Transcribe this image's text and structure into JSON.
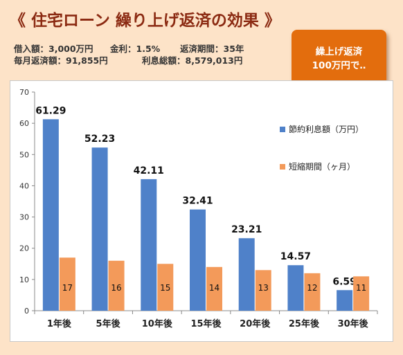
{
  "title": "《 住宅ローン 繰り上げ返済の効果 》",
  "info": {
    "line1": [
      "借入額：3,000万円",
      "金利：1.5%",
      "返済期間：35年"
    ],
    "line2": [
      "毎月返済額：91,855円",
      "利息総額：8,579,013円"
    ]
  },
  "callout": {
    "line1": "繰上げ返済",
    "line2": "100万円で‥"
  },
  "colors": {
    "blue": "#4f81c9",
    "orange": "#f39a5a",
    "callout": "#e36d0d",
    "title": "#8b2a12"
  },
  "chart_data": {
    "type": "bar",
    "categories": [
      "1年後",
      "5年後",
      "10年後",
      "15年後",
      "20年後",
      "25年後",
      "30年後"
    ],
    "series": [
      {
        "name": "節約利息額（万円）",
        "values": [
          61.29,
          52.23,
          42.11,
          32.41,
          23.21,
          14.57,
          6.59
        ]
      },
      {
        "name": "短縮期間（ヶ月）",
        "values": [
          17,
          16,
          15,
          14,
          13,
          12,
          11
        ]
      }
    ],
    "ylim": [
      0,
      70
    ],
    "yticks": [
      0,
      10,
      20,
      30,
      40,
      50,
      60,
      70
    ],
    "grid": false,
    "legend": "right"
  }
}
